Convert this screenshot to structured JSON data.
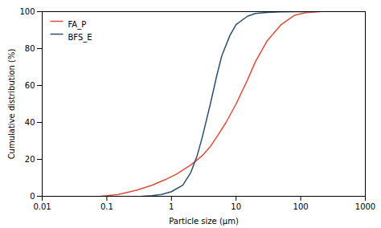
{
  "chart_data": {
    "type": "line",
    "xlabel": "Particle size (μm)",
    "ylabel": "Cumulative distribution (%)",
    "log": "x",
    "xlim": [
      0.01,
      1000
    ],
    "xticks": [
      0.01,
      0.1,
      1,
      10,
      100,
      1000
    ],
    "ylim": [
      0,
      100
    ],
    "yticks": [
      0,
      20,
      40,
      60,
      80,
      100
    ],
    "legend": "upper left",
    "series": [
      {
        "name": "FA_P",
        "color": "#d94f3b",
        "x": [
          0.08,
          0.1,
          0.15,
          0.2,
          0.3,
          0.5,
          0.8,
          1.2,
          2.0,
          3.0,
          4.0,
          5.0,
          7.0,
          10.0,
          15.0,
          20.0,
          30.0,
          50.0,
          80.0,
          120.0,
          200.0
        ],
        "values": [
          0.0,
          0.3,
          1.0,
          2.0,
          3.5,
          6.0,
          9.0,
          12.0,
          17.0,
          22.0,
          27.0,
          32.0,
          40.0,
          50.0,
          63.0,
          73.0,
          84.0,
          93.0,
          98.0,
          99.5,
          100.0
        ]
      },
      {
        "name": "BFS_E",
        "color": "#2e4f6d",
        "x": [
          0.35,
          0.5,
          0.7,
          1.0,
          1.5,
          2.0,
          2.5,
          3.0,
          4.0,
          5.0,
          6.0,
          8.0,
          10.0,
          15.0,
          20.0,
          30.0,
          50.0,
          80.0,
          120.0
        ],
        "values": [
          0.0,
          0.3,
          1.0,
          2.5,
          6.0,
          13.0,
          22.0,
          32.0,
          50.0,
          65.0,
          76.0,
          87.0,
          93.0,
          97.5,
          99.0,
          99.6,
          99.9,
          100.0,
          100.0
        ]
      }
    ]
  }
}
